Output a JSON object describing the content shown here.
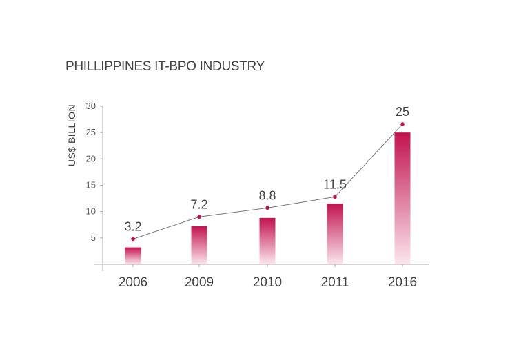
{
  "chart_data": {
    "type": "bar",
    "title": "PHILLIPPINES IT-BPO INDUSTRY",
    "ylabel": "US$ BILLION",
    "xlabel": "",
    "categories": [
      "2006",
      "2009",
      "2010",
      "2011",
      "2016"
    ],
    "values": [
      3.2,
      7.2,
      8.8,
      11.5,
      25
    ],
    "value_labels": [
      "3.2",
      "7.2",
      "8.8",
      "11.5",
      "25"
    ],
    "line_values": [
      4.8,
      9,
      10.7,
      12.8,
      26.6
    ],
    "yticks": [
      5,
      10,
      15,
      20,
      25,
      30
    ],
    "ylim": [
      0,
      30
    ],
    "grid": false,
    "legend": "none",
    "colors": {
      "bar_top": "#c2134f",
      "bar_bottom": "#fbe6ee",
      "line": "#777777",
      "point": "#c2134f",
      "axis": "#aaaaaa"
    }
  }
}
